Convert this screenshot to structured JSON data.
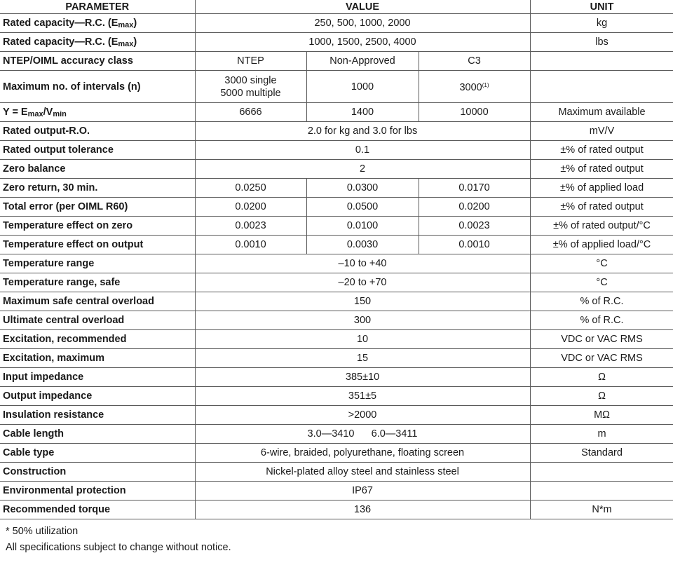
{
  "header": {
    "parameter": "PARAMETER",
    "value": "VALUE",
    "unit": "UNIT"
  },
  "rows": [
    {
      "param_parts": [
        {
          "t": "Rated capacity—R.C. (E"
        },
        {
          "t": "max",
          "sub": true
        },
        {
          "t": ")"
        }
      ],
      "value": "250, 500, 1000, 2000",
      "unit": "kg"
    },
    {
      "param_parts": [
        {
          "t": "Rated capacity—R.C. (E"
        },
        {
          "t": "max",
          "sub": true
        },
        {
          "t": ")"
        }
      ],
      "value": "1000, 1500, 2500, 4000",
      "unit": "lbs"
    },
    {
      "param": "NTEP/OIML accuracy class",
      "values": [
        "NTEP",
        "Non-Approved",
        "C3"
      ],
      "unit": ""
    },
    {
      "param": "Maximum no. of intervals (n)",
      "tall": true,
      "values": [
        "3000 single\n5000 multiple",
        "1000",
        "3000"
      ],
      "sup": "(1)",
      "unit": ""
    },
    {
      "param_parts": [
        {
          "t": "Y = E"
        },
        {
          "t": "max",
          "sub": true
        },
        {
          "t": "/V"
        },
        {
          "t": "min",
          "sub": true
        }
      ],
      "values": [
        "6666",
        "1400",
        "10000"
      ],
      "unit": "Maximum available"
    },
    {
      "param": "Rated output-R.O.",
      "value": "2.0 for kg and 3.0 for lbs",
      "unit": "mV/V"
    },
    {
      "param": "Rated output tolerance",
      "value": "0.1",
      "unit": "±% of rated output"
    },
    {
      "param": "Zero balance",
      "value": "2",
      "unit": "±% of rated output"
    },
    {
      "param": "Zero return, 30 min.",
      "values": [
        "0.0250",
        "0.0300",
        "0.0170"
      ],
      "unit": "±% of applied load"
    },
    {
      "param": "Total error (per OIML R60)",
      "values": [
        "0.0200",
        "0.0500",
        "0.0200"
      ],
      "unit": "±% of rated output"
    },
    {
      "param": "Temperature effect on zero",
      "values": [
        "0.0023",
        "0.0100",
        "0.0023"
      ],
      "unit": "±% of rated output/°C"
    },
    {
      "param": "Temperature effect on output",
      "values": [
        "0.0010",
        "0.0030",
        "0.0010"
      ],
      "unit": "±% of applied load/°C"
    },
    {
      "param": "Temperature range",
      "value": "–10 to +40",
      "unit": "°C"
    },
    {
      "param": "Temperature range, safe",
      "value": "–20 to +70",
      "unit": "°C"
    },
    {
      "param": "Maximum safe central overload",
      "value": "150",
      "unit": "% of R.C."
    },
    {
      "param": "Ultimate central overload",
      "value": "300",
      "unit": "% of R.C."
    },
    {
      "param": "Excitation, recommended",
      "value": "10",
      "unit": "VDC or VAC RMS"
    },
    {
      "param": "Excitation, maximum",
      "value": "15",
      "unit": "VDC or VAC RMS"
    },
    {
      "param": "Input impedance",
      "value": "385±10",
      "unit": "Ω"
    },
    {
      "param": "Output impedance",
      "value": "351±5",
      "unit": "Ω"
    },
    {
      "param": "Insulation resistance",
      "value": ">2000",
      "unit": "MΩ"
    },
    {
      "param": "Cable length",
      "value": "3.0—3410      6.0—3411",
      "unit": "m"
    },
    {
      "param": "Cable type",
      "value": "6-wire, braided, polyurethane, floating screen",
      "unit": "Standard"
    },
    {
      "param": "Construction",
      "value": "Nickel-plated alloy steel and stainless steel",
      "unit": ""
    },
    {
      "param": "Environmental protection",
      "value": "IP67",
      "unit": ""
    },
    {
      "param": "Recommended torque",
      "value": "136",
      "unit": "N*m"
    }
  ],
  "notes": [
    "* 50% utilization",
    "All specifications subject to change without notice."
  ]
}
